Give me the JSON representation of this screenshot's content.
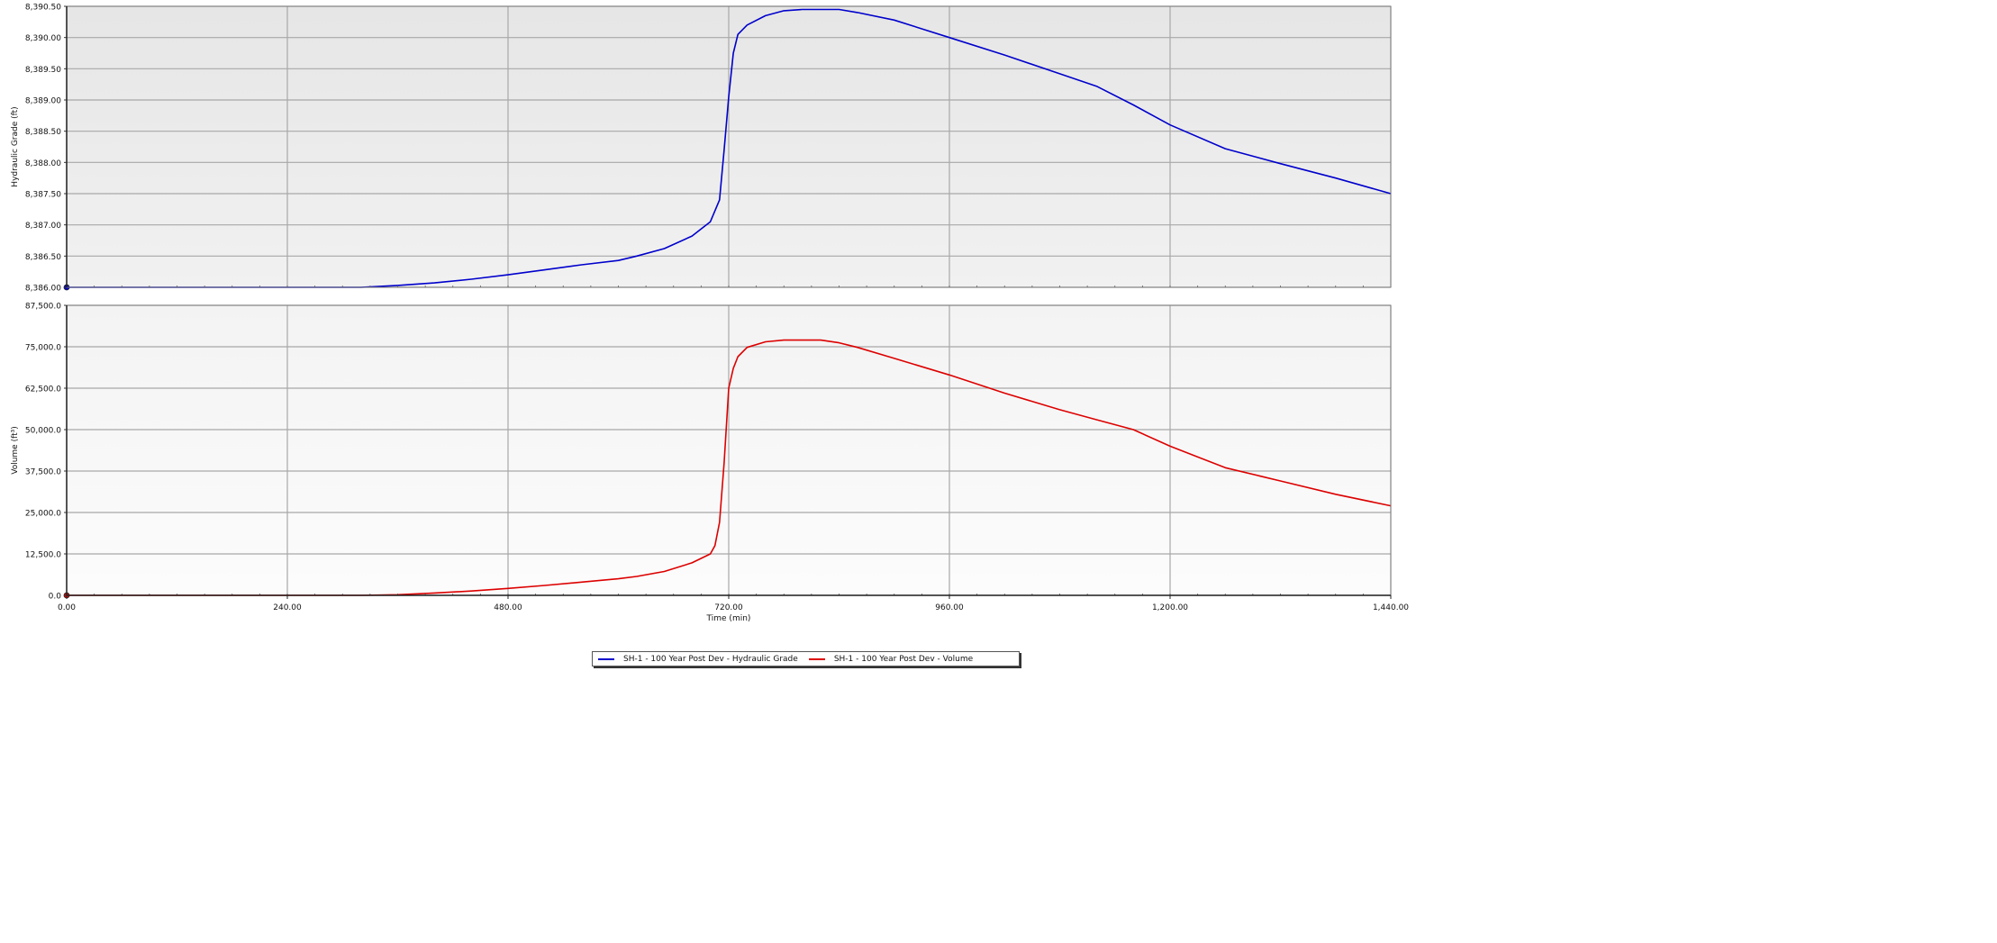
{
  "chart_data": {
    "type": "line",
    "xlabel": "Time (min)",
    "x_ticks": [
      "0.00",
      "240.00",
      "480.00",
      "720.00",
      "960.00",
      "1,200.00",
      "1,440.00"
    ],
    "xlim": [
      0,
      1440
    ],
    "grid": true,
    "legend_position": "bottom-center",
    "panels": [
      {
        "id": "top",
        "ylabel": "Hydraulic Grade (ft)",
        "ylim": [
          8386.0,
          8390.5
        ],
        "y_ticks": [
          "8,386.00",
          "8,386.50",
          "8,387.00",
          "8,387.50",
          "8,388.00",
          "8,388.50",
          "8,389.00",
          "8,389.50",
          "8,390.00",
          "8,390.50"
        ],
        "series": [
          {
            "name": "SH-1 - 100 Year Post Dev - Hydraulic Grade",
            "color": "#0000cc",
            "x": [
              0,
              240,
              320,
              360,
              400,
              440,
              480,
              520,
              560,
              600,
              620,
              650,
              680,
              700,
              710,
              715,
              720,
              725,
              730,
              740,
              760,
              780,
              800,
              820,
              840,
              860,
              900,
              960,
              1020,
              1080,
              1120,
              1160,
              1200,
              1260,
              1320,
              1380,
              1440
            ],
            "y": [
              8386.0,
              8386.0,
              8386.0,
              8386.03,
              8386.07,
              8386.13,
              8386.2,
              8386.28,
              8386.36,
              8386.43,
              8386.5,
              8386.62,
              8386.82,
              8387.05,
              8387.4,
              8388.2,
              8389.05,
              8389.75,
              8390.05,
              8390.2,
              8390.35,
              8390.43,
              8390.45,
              8390.45,
              8390.45,
              8390.4,
              8390.28,
              8390.0,
              8389.72,
              8389.42,
              8389.22,
              8388.92,
              8388.6,
              8388.22,
              8387.98,
              8387.75,
              8387.5
            ]
          }
        ]
      },
      {
        "id": "bottom",
        "ylabel": "Volume (ft³)",
        "ylim": [
          0,
          87500
        ],
        "y_ticks": [
          "0.0",
          "12,500.0",
          "25,000.0",
          "37,500.0",
          "50,000.0",
          "62,500.0",
          "75,000.0",
          "87,500.0"
        ],
        "series": [
          {
            "name": "SH-1 - 100 Year Post Dev - Volume",
            "color": "#dd0000",
            "x": [
              0,
              240,
              320,
              360,
              400,
              440,
              480,
              520,
              560,
              600,
              620,
              650,
              680,
              700,
              705,
              710,
              715,
              720,
              725,
              730,
              740,
              760,
              780,
              800,
              820,
              840,
              860,
              900,
              960,
              1020,
              1080,
              1120,
              1160,
              1200,
              1260,
              1320,
              1380,
              1440
            ],
            "y": [
              0,
              0,
              0,
              200,
              700,
              1300,
              2100,
              3000,
              4000,
              5000,
              5700,
              7200,
              9800,
              12500,
              15000,
              22000,
              40000,
              62500,
              68500,
              72000,
              74800,
              76500,
              77000,
              77000,
              77000,
              76200,
              74800,
              71500,
              66500,
              61000,
              56000,
              53000,
              50000,
              45000,
              38500,
              34500,
              30500,
              27000
            ]
          }
        ]
      }
    ]
  }
}
